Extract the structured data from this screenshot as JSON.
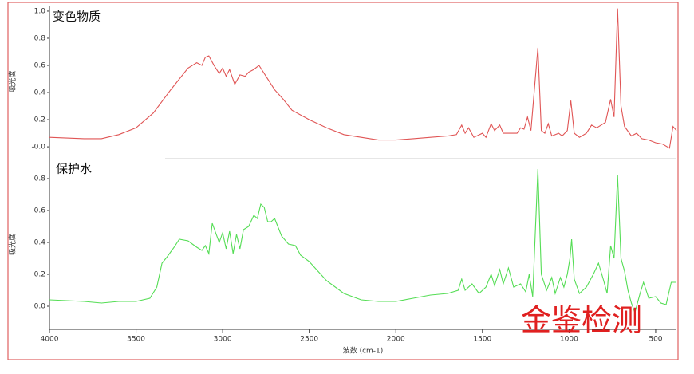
{
  "chart_data": [
    {
      "type": "line",
      "title": "变色物质",
      "ylabel": "吸光度",
      "xlim": [
        4000,
        380
      ],
      "ylim": [
        -0.07,
        1.035
      ],
      "yticks": [
        {
          "value": 0,
          "label": "-0.0"
        },
        {
          "value": 0.2,
          "label": "0.2"
        },
        {
          "value": 0.4,
          "label": "0.4"
        },
        {
          "value": 0.6,
          "label": "0.6"
        },
        {
          "value": 0.8,
          "label": "0.8"
        },
        {
          "value": 1,
          "label": "1.0"
        }
      ],
      "x": [
        4000,
        3800,
        3700,
        3600,
        3500,
        3400,
        3300,
        3200,
        3150,
        3120,
        3100,
        3080,
        3050,
        3020,
        3000,
        2980,
        2960,
        2930,
        2900,
        2870,
        2850,
        2820,
        2790,
        2750,
        2700,
        2650,
        2600,
        2500,
        2400,
        2300,
        2200,
        2100,
        2000,
        1900,
        1800,
        1700,
        1650,
        1620,
        1600,
        1580,
        1550,
        1500,
        1480,
        1450,
        1430,
        1400,
        1380,
        1300,
        1280,
        1260,
        1240,
        1220,
        1180,
        1160,
        1140,
        1120,
        1100,
        1060,
        1040,
        1010,
        990,
        970,
        940,
        900,
        870,
        840,
        790,
        760,
        740,
        720,
        700,
        680,
        640,
        610,
        580,
        540,
        500,
        460,
        420,
        400,
        380
      ],
      "series": [
        {
          "name": "变色物质",
          "color": "#e05555",
          "values": [
            0.07,
            0.06,
            0.06,
            0.09,
            0.14,
            0.25,
            0.42,
            0.58,
            0.62,
            0.6,
            0.66,
            0.67,
            0.6,
            0.54,
            0.58,
            0.52,
            0.57,
            0.46,
            0.53,
            0.52,
            0.55,
            0.57,
            0.6,
            0.52,
            0.42,
            0.35,
            0.27,
            0.2,
            0.14,
            0.09,
            0.07,
            0.05,
            0.05,
            0.06,
            0.07,
            0.08,
            0.09,
            0.16,
            0.1,
            0.14,
            0.07,
            0.1,
            0.07,
            0.17,
            0.12,
            0.16,
            0.1,
            0.1,
            0.14,
            0.13,
            0.22,
            0.12,
            0.73,
            0.12,
            0.1,
            0.17,
            0.08,
            0.1,
            0.08,
            0.12,
            0.34,
            0.1,
            0.07,
            0.1,
            0.16,
            0.14,
            0.18,
            0.35,
            0.22,
            1.02,
            0.3,
            0.15,
            0.08,
            0.1,
            0.06,
            0.05,
            0.03,
            0.02,
            -0.01,
            0.15,
            0.12
          ]
        }
      ]
    },
    {
      "type": "line",
      "title": "保护水",
      "ylabel": "吸光度",
      "xlabel": "波数 (cm-1)",
      "annotation": "金鉴检测",
      "xlim": [
        4000,
        380
      ],
      "ylim": [
        -0.145,
        0.92
      ],
      "xticks": [
        4000,
        3500,
        3000,
        2500,
        2000,
        1500,
        1000,
        500
      ],
      "yticks": [
        {
          "value": 0,
          "label": "0.0"
        },
        {
          "value": 0.2,
          "label": "0.2"
        },
        {
          "value": 0.4,
          "label": "0.4"
        },
        {
          "value": 0.6,
          "label": "0.6"
        },
        {
          "value": 0.8,
          "label": "0.8"
        }
      ],
      "x": [
        4000,
        3800,
        3700,
        3600,
        3500,
        3420,
        3380,
        3350,
        3320,
        3280,
        3250,
        3200,
        3150,
        3120,
        3100,
        3080,
        3060,
        3040,
        3020,
        3000,
        2980,
        2960,
        2940,
        2920,
        2900,
        2880,
        2850,
        2820,
        2800,
        2780,
        2760,
        2740,
        2720,
        2700,
        2660,
        2620,
        2580,
        2550,
        2500,
        2450,
        2400,
        2300,
        2200,
        2100,
        2000,
        1900,
        1800,
        1700,
        1640,
        1620,
        1600,
        1560,
        1520,
        1480,
        1450,
        1430,
        1400,
        1380,
        1350,
        1320,
        1280,
        1250,
        1230,
        1210,
        1180,
        1160,
        1130,
        1100,
        1080,
        1050,
        1030,
        1010,
        995,
        985,
        970,
        940,
        900,
        860,
        830,
        800,
        780,
        760,
        740,
        720,
        700,
        680,
        660,
        640,
        620,
        590,
        570,
        540,
        500,
        470,
        440,
        410,
        380
      ],
      "series": [
        {
          "name": "保护水",
          "color": "#55dd55",
          "values": [
            0.04,
            0.03,
            0.02,
            0.03,
            0.03,
            0.05,
            0.12,
            0.27,
            0.31,
            0.37,
            0.42,
            0.41,
            0.37,
            0.35,
            0.38,
            0.33,
            0.52,
            0.46,
            0.4,
            0.46,
            0.36,
            0.47,
            0.33,
            0.45,
            0.36,
            0.48,
            0.5,
            0.57,
            0.55,
            0.64,
            0.62,
            0.53,
            0.53,
            0.55,
            0.44,
            0.39,
            0.38,
            0.32,
            0.28,
            0.22,
            0.16,
            0.08,
            0.04,
            0.03,
            0.03,
            0.05,
            0.07,
            0.08,
            0.1,
            0.17,
            0.1,
            0.14,
            0.08,
            0.12,
            0.2,
            0.13,
            0.23,
            0.14,
            0.24,
            0.12,
            0.14,
            0.09,
            0.2,
            0.06,
            0.86,
            0.2,
            0.1,
            0.18,
            0.08,
            0.18,
            0.12,
            0.2,
            0.3,
            0.42,
            0.17,
            0.08,
            0.12,
            0.2,
            0.27,
            0.16,
            0.08,
            0.38,
            0.3,
            0.82,
            0.3,
            0.22,
            0.1,
            0.02,
            -0.04,
            0.08,
            0.15,
            0.05,
            0.06,
            0.02,
            0.01,
            0.15,
            0.15
          ]
        }
      ]
    }
  ]
}
